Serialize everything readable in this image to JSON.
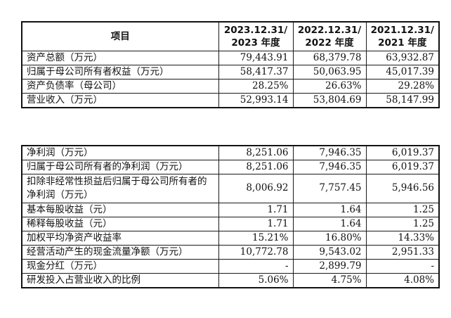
{
  "top_table": {
    "header": {
      "item": "项目",
      "columns": [
        {
          "line1": "2023.12.31/",
          "line2": "2023 年度"
        },
        {
          "line1": "2022.12.31/",
          "line2": "2022 年度"
        },
        {
          "line1": "2021.12.31/",
          "line2": "2021 年度"
        }
      ]
    },
    "rows": [
      {
        "label": "资产总额（万元）",
        "values": [
          "79,443.91",
          "68,379.78",
          "63,932.87"
        ]
      },
      {
        "label": "归属于母公司所有者权益（万元）",
        "values": [
          "58,417.37",
          "50,063.95",
          "45,017.39"
        ]
      },
      {
        "label": "资产负债率（母公司）",
        "values": [
          "28.25%",
          "26.63%",
          "29.28%"
        ]
      },
      {
        "label": "营业收入（万元）",
        "values": [
          "52,993.14",
          "53,804.69",
          "58,147.99"
        ]
      }
    ]
  },
  "bottom_table": {
    "rows": [
      {
        "label": "净利润（万元）",
        "values": [
          "8,251.06",
          "7,946.35",
          "6,019.37"
        ]
      },
      {
        "label": "归属于母公司所有者的净利润（万元）",
        "values": [
          "8,251.06",
          "7,946.35",
          "6,019.37"
        ]
      },
      {
        "label": "扣除非经常性损益后归属于母公司所有者的净利润（万元）",
        "values": [
          "8,006.92",
          "7,757.45",
          "5,946.56"
        ]
      },
      {
        "label": "基本每股收益（元）",
        "values": [
          "1.71",
          "1.64",
          "1.25"
        ]
      },
      {
        "label": "稀释每股收益（元）",
        "values": [
          "1.71",
          "1.64",
          "1.25"
        ]
      },
      {
        "label": "加权平均净资产收益率",
        "values": [
          "15.21%",
          "16.80%",
          "14.33%"
        ]
      },
      {
        "label": "经营活动产生的现金流量净额（万元）",
        "values": [
          "10,772.78",
          "9,543.02",
          "2,951.33"
        ]
      },
      {
        "label": "现金分红（万元）",
        "values": [
          "-",
          "2,899.79",
          "-"
        ]
      },
      {
        "label": "研发投入占营业收入的比例",
        "values": [
          "5.06%",
          "4.75%",
          "4.08%"
        ]
      }
    ]
  }
}
